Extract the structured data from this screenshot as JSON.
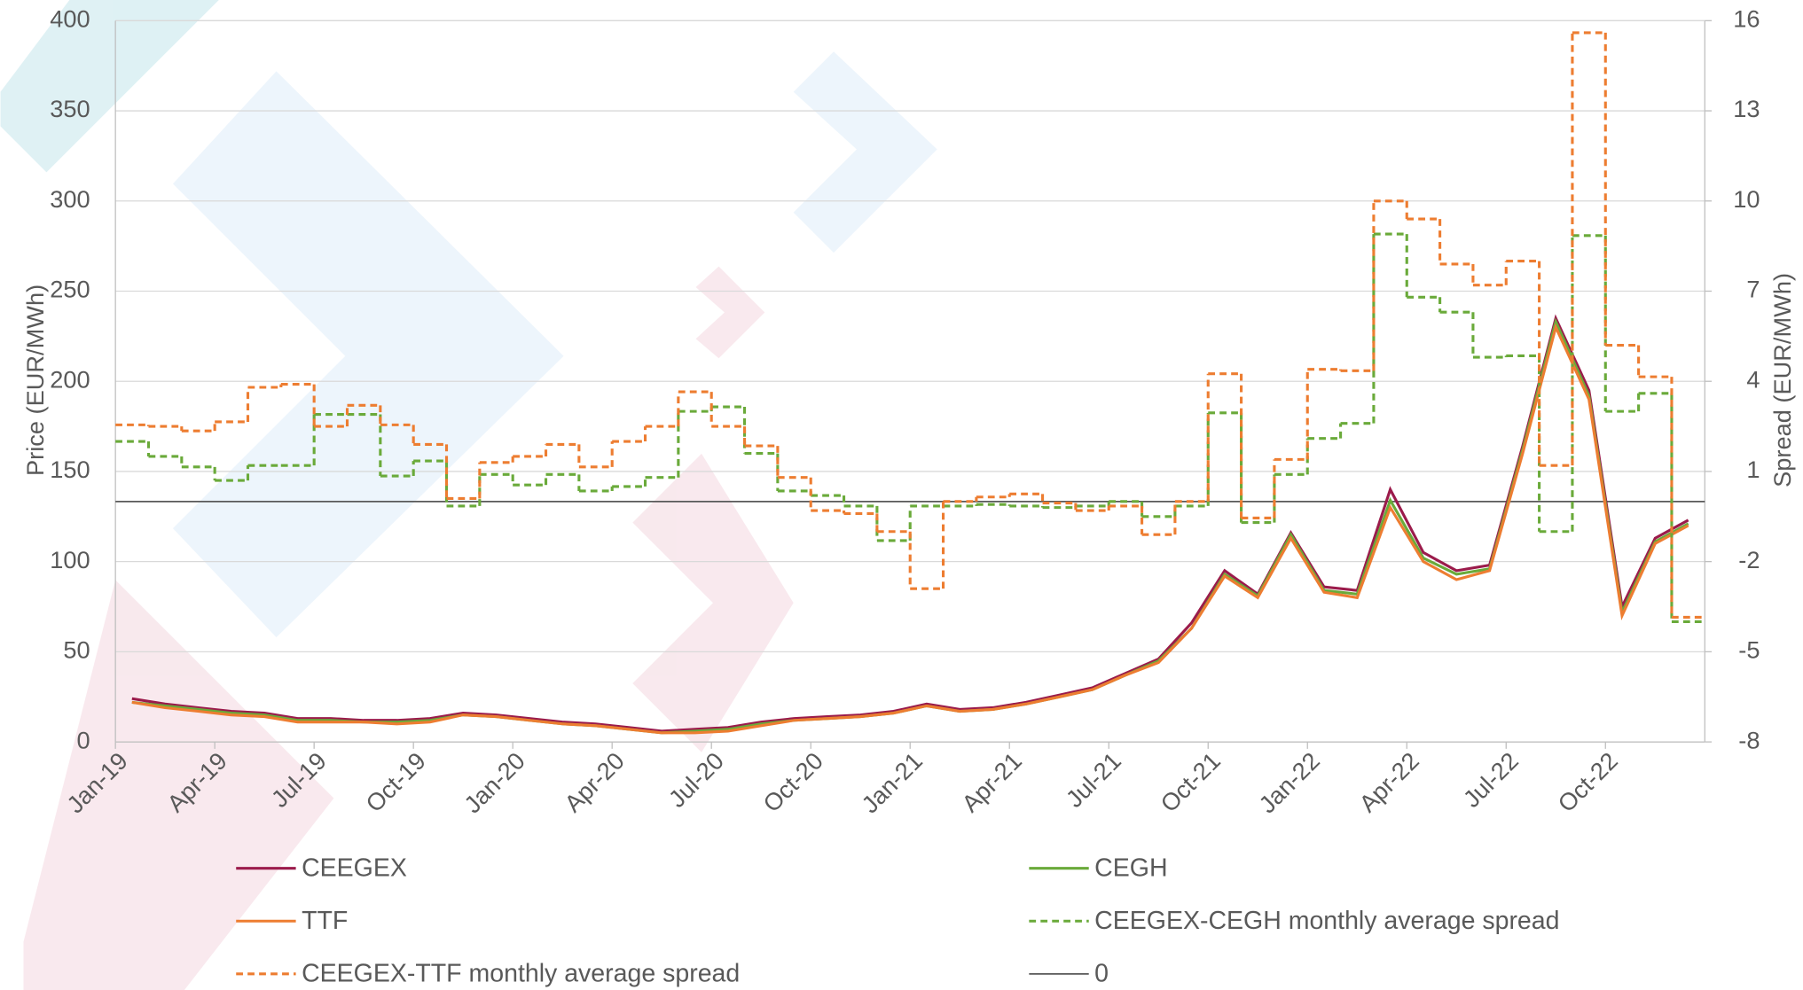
{
  "chart_data": {
    "type": "line",
    "ylabel": "Price (EUR/MWh)",
    "y2label": "Spread (EUR/MWh)",
    "categories": [
      "Jan-19",
      null,
      null,
      "Apr-19",
      null,
      null,
      "Jul-19",
      null,
      null,
      "Oct-19",
      null,
      null,
      "Jan-20",
      null,
      null,
      "Apr-20",
      null,
      null,
      "Jul-20",
      null,
      null,
      "Oct-20",
      null,
      null,
      "Jan-21",
      null,
      null,
      "Apr-21",
      null,
      null,
      "Jul-21",
      null,
      null,
      "Oct-21",
      null,
      null,
      "Jan-22",
      null,
      null,
      "Apr-22",
      null,
      null,
      "Jul-22",
      null,
      null,
      "Oct-22",
      null,
      null
    ],
    "ylim": [
      0,
      400
    ],
    "yticks": [
      0,
      50,
      100,
      150,
      200,
      250,
      300,
      350,
      400
    ],
    "y2lim": [
      -8,
      16
    ],
    "y2ticks": [
      -8,
      -5,
      -2,
      1,
      4,
      7,
      10,
      13,
      16
    ],
    "grid": true,
    "series": [
      {
        "name": "CEEGEX",
        "color": "#9b1b4b",
        "dash": false,
        "step": false,
        "values": [
          24,
          21,
          19,
          17,
          16,
          13,
          13,
          12,
          12,
          13,
          16,
          15,
          13,
          11,
          10,
          8,
          6,
          7,
          8,
          11,
          13,
          14,
          15,
          17,
          21,
          18,
          19,
          22,
          26,
          30,
          38,
          46,
          66,
          95,
          82,
          116,
          86,
          84,
          140,
          105,
          95,
          98,
          164,
          235,
          195,
          75,
          113,
          123
        ]
      },
      {
        "name": "CEGH",
        "color": "#6aaa3a",
        "dash": false,
        "step": false,
        "values": [
          22,
          20,
          18,
          16,
          15,
          12,
          12,
          11,
          11,
          12,
          15,
          14,
          12,
          10,
          9,
          7,
          5,
          6,
          7,
          10,
          12,
          13,
          14,
          16,
          20,
          17,
          18,
          21,
          25,
          29,
          37,
          45,
          63,
          93,
          81,
          115,
          84,
          82,
          134,
          102,
          93,
          96,
          162,
          233,
          192,
          72,
          111,
          121
        ]
      },
      {
        "name": "TTF",
        "color": "#ed7d31",
        "dash": false,
        "step": false,
        "values": [
          22,
          19,
          17,
          15,
          14,
          11,
          11,
          11,
          10,
          11,
          15,
          14,
          12,
          10,
          9,
          7,
          5,
          5,
          6,
          9,
          12,
          13,
          14,
          16,
          20,
          17,
          18,
          21,
          25,
          29,
          37,
          44,
          63,
          92,
          80,
          113,
          83,
          80,
          130,
          100,
          90,
          95,
          160,
          230,
          190,
          70,
          110,
          120
        ]
      },
      {
        "name": "CEEGEX-CEGH monthly average spread",
        "color": "#6aaa3a",
        "dash": true,
        "step": true,
        "axis": "y2",
        "values": [
          2,
          1.5,
          1.15,
          0.7,
          1.2,
          1.2,
          2.9,
          2.9,
          0.85,
          1.35,
          -0.15,
          0.9,
          0.55,
          0.9,
          0.35,
          0.5,
          0.8,
          3,
          3.15,
          1.6,
          0.35,
          0.2,
          -0.15,
          -1.3,
          -0.15,
          -0.15,
          -0.1,
          -0.15,
          -0.2,
          -0.15,
          0,
          -0.5,
          -0.15,
          2.95,
          -0.7,
          0.9,
          2.1,
          2.6,
          8.9,
          6.8,
          6.3,
          4.8,
          4.85,
          -1,
          8.85,
          3,
          3.6,
          -4
        ]
      },
      {
        "name": "CEEGEX-TTF monthly average spread",
        "color": "#ed7d31",
        "dash": true,
        "step": true,
        "axis": "y2",
        "values": [
          2.55,
          2.5,
          2.35,
          2.65,
          3.8,
          3.9,
          2.5,
          3.2,
          2.55,
          1.9,
          0.1,
          1.3,
          1.5,
          1.9,
          1.15,
          2,
          2.5,
          3.65,
          2.5,
          1.85,
          0.8,
          -0.3,
          -0.4,
          -1,
          -2.9,
          0,
          0.15,
          0.25,
          -0.05,
          -0.3,
          -0.15,
          -1.1,
          0,
          4.25,
          -0.55,
          1.4,
          4.4,
          4.35,
          10,
          9.4,
          7.9,
          7.2,
          8,
          1.2,
          15.6,
          5.2,
          4.15,
          -3.85
        ]
      },
      {
        "name": "0",
        "color": "#595959",
        "dash": false,
        "step": false,
        "axis": "y2",
        "values": [
          0,
          0,
          0,
          0,
          0,
          0,
          0,
          0,
          0,
          0,
          0,
          0,
          0,
          0,
          0,
          0,
          0,
          0,
          0,
          0,
          0,
          0,
          0,
          0,
          0,
          0,
          0,
          0,
          0,
          0,
          0,
          0,
          0,
          0,
          0,
          0,
          0,
          0,
          0,
          0,
          0,
          0,
          0,
          0,
          0,
          0,
          0,
          0
        ]
      }
    ]
  }
}
